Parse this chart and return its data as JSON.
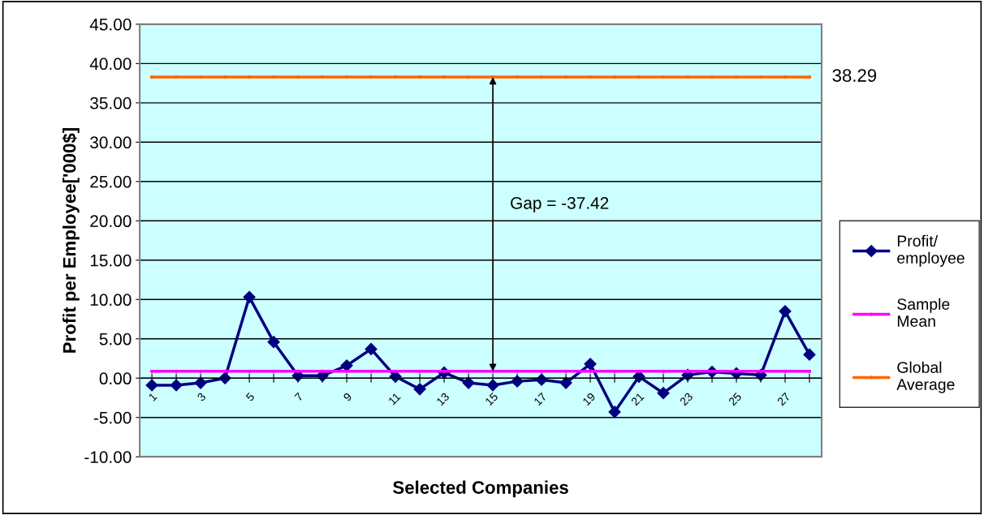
{
  "chart_data": {
    "type": "line",
    "xlabel": "Selected Companies",
    "ylabel": "Profit per Employee['000$]",
    "categories": [
      "1",
      null,
      "3",
      null,
      "5",
      null,
      "7",
      null,
      "9",
      null,
      "11",
      null,
      "13",
      null,
      "15",
      null,
      "17",
      null,
      "19",
      null,
      "21",
      null,
      "23",
      null,
      "25",
      null,
      "27",
      null
    ],
    "series": [
      {
        "name": "Profit/\nemployee",
        "color": "#000080",
        "marker": "diamond",
        "values": [
          -0.9,
          -0.9,
          -0.6,
          0.0,
          10.3,
          4.6,
          0.3,
          0.3,
          1.6,
          3.7,
          0.2,
          -1.4,
          0.7,
          -0.6,
          -0.9,
          -0.4,
          -0.2,
          -0.6,
          1.8,
          -4.3,
          0.2,
          -1.9,
          0.4,
          0.8,
          0.6,
          0.4,
          8.5,
          3.0
        ]
      },
      {
        "name": "Sample\nMean",
        "color": "#ff00ff",
        "marker": "circle",
        "values": [
          0.87,
          0.87,
          0.87,
          0.87,
          0.87,
          0.87,
          0.87,
          0.87,
          0.87,
          0.87,
          0.87,
          0.87,
          0.87,
          0.87,
          0.87,
          0.87,
          0.87,
          0.87,
          0.87,
          0.87,
          0.87,
          0.87,
          0.87,
          0.87,
          0.87,
          0.87,
          0.87,
          0.87
        ]
      },
      {
        "name": "Global\nAverage",
        "color": "#ff6600",
        "marker": "circle",
        "values": [
          38.29,
          38.29,
          38.29,
          38.29,
          38.29,
          38.29,
          38.29,
          38.29,
          38.29,
          38.29,
          38.29,
          38.29,
          38.29,
          38.29,
          38.29,
          38.29,
          38.29,
          38.29,
          38.29,
          38.29,
          38.29,
          38.29,
          38.29,
          38.29,
          38.29,
          38.29,
          38.29,
          38.29
        ]
      }
    ],
    "ylim": [
      -10,
      45
    ],
    "yticks": [
      {
        "value": -10,
        "label": "-10.00"
      },
      {
        "value": -5,
        "label": "-5.00"
      },
      {
        "value": 0,
        "label": "0.00"
      },
      {
        "value": 5,
        "label": "5.00"
      },
      {
        "value": 10,
        "label": "10.00"
      },
      {
        "value": 15,
        "label": "15.00"
      },
      {
        "value": 20,
        "label": "20.00"
      },
      {
        "value": 25,
        "label": "25.00"
      },
      {
        "value": 30,
        "label": "30.00"
      },
      {
        "value": 35,
        "label": "35.00"
      },
      {
        "value": 40,
        "label": "40.00"
      },
      {
        "value": 45,
        "label": "45.00"
      }
    ],
    "grid": "y",
    "legend": "right",
    "annotations": [
      "38.29",
      "Gap = -37.42"
    ]
  }
}
